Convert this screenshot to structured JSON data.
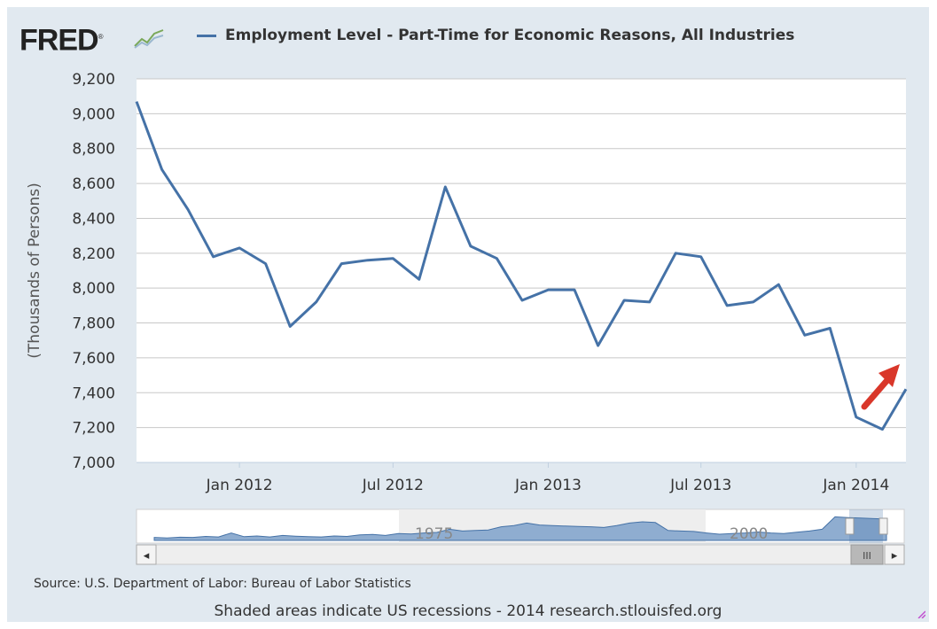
{
  "logo": {
    "text": "FRED",
    "mark": "®"
  },
  "legend": {
    "label": "Employment Level - Part-Time for Economic Reasons, All Industries",
    "color": "#4572a7"
  },
  "chart_data": {
    "type": "line",
    "title": "Employment Level - Part-Time for Economic Reasons, All Industries",
    "ylabel": "(Thousands of Persons)",
    "xlabel": "",
    "ylim": [
      7000,
      9200
    ],
    "yticks": [
      7000,
      7200,
      7400,
      7600,
      7800,
      8000,
      8200,
      8400,
      8600,
      8800,
      9000,
      9200
    ],
    "ytick_labels": [
      "7,000",
      "7,200",
      "7,400",
      "7,600",
      "7,800",
      "8,000",
      "8,200",
      "8,400",
      "8,600",
      "8,800",
      "9,000",
      "9,200"
    ],
    "xticks": [
      "2012-01",
      "2012-07",
      "2013-01",
      "2013-07",
      "2014-01"
    ],
    "xtick_labels": [
      "Jan 2012",
      "Jul 2012",
      "Jan 2013",
      "Jul 2013",
      "Jan 2014"
    ],
    "grid": true,
    "series": [
      {
        "name": "Employment Level - Part-Time for Economic Reasons, All Industries",
        "color": "#4572a7",
        "x": [
          "2011-09",
          "2011-10",
          "2011-11",
          "2011-12",
          "2012-01",
          "2012-02",
          "2012-03",
          "2012-04",
          "2012-05",
          "2012-06",
          "2012-07",
          "2012-08",
          "2012-09",
          "2012-10",
          "2012-11",
          "2012-12",
          "2013-01",
          "2013-02",
          "2013-03",
          "2013-04",
          "2013-05",
          "2013-06",
          "2013-07",
          "2013-08",
          "2013-09",
          "2013-10",
          "2013-11",
          "2013-12",
          "2014-01",
          "2014-02",
          "2014-03"
        ],
        "values": [
          9070,
          8680,
          8450,
          8180,
          8230,
          8140,
          7780,
          7920,
          8140,
          8160,
          8170,
          8050,
          8580,
          8240,
          8170,
          7930,
          7990,
          7990,
          7670,
          7930,
          7920,
          8200,
          8180,
          7900,
          7920,
          8020,
          7730,
          7770,
          7260,
          7190,
          7420
        ]
      }
    ],
    "navigator": {
      "labels": [
        "1975",
        "2000"
      ]
    },
    "annotations": [
      "red arrow pointing up-right at the latest value"
    ]
  },
  "scroll_buttons": {
    "left": "◂",
    "right": "▸",
    "thumb": "III"
  },
  "source": "Source: U.S. Department of Labor: Bureau of Labor Statistics",
  "footer": "Shaded areas indicate US recessions - 2014 research.stlouisfed.org",
  "colors": {
    "line": "#4572a7",
    "background": "#e1e9f0",
    "plot": "#ffffff",
    "grid": "#c8c8c8",
    "arrow": "#d9372a"
  }
}
